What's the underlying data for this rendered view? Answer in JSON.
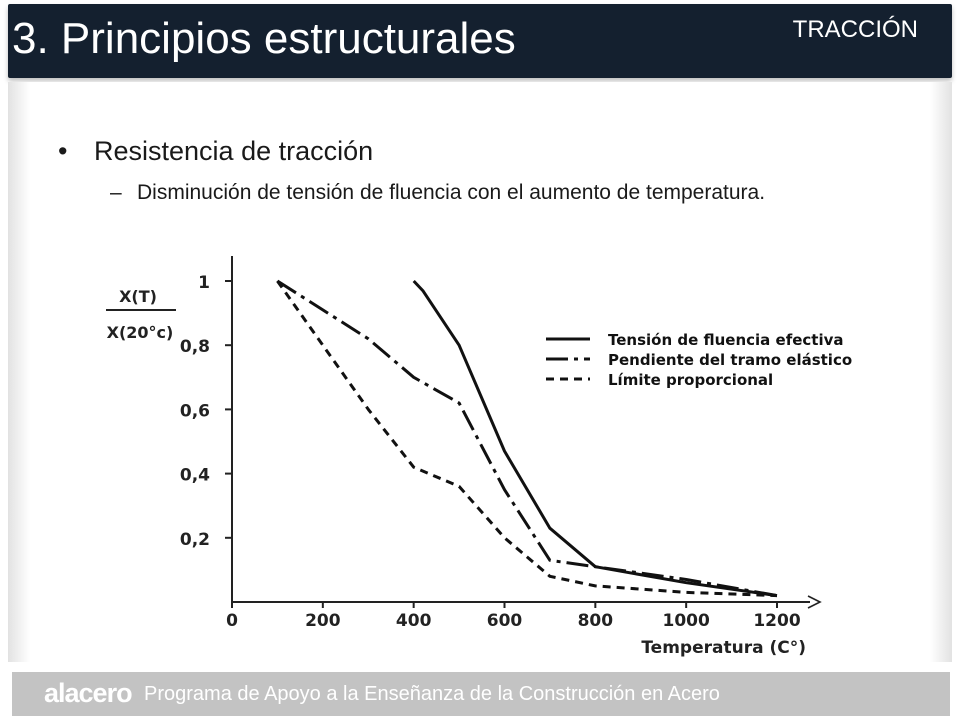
{
  "header": {
    "title": "3. Principios estructurales",
    "section": "TRACCIÓN"
  },
  "content": {
    "bullet": "Resistencia de tracción",
    "bullet_marker": "•",
    "sub_marker": "–",
    "sub_bullet": "Disminución de tensión de fluencia con el aumento de temperatura."
  },
  "chart_data": {
    "type": "line",
    "ylabel_numerator": "X(T)",
    "ylabel_denominator": "X(20°c)",
    "xlabel": "Temperatura (C°)",
    "xlim": [
      0,
      1300
    ],
    "ylim": [
      0,
      1.08
    ],
    "x_ticks": [
      0,
      200,
      400,
      600,
      800,
      1000,
      1200
    ],
    "x_tick_labels": [
      "0",
      "200",
      "400",
      "600",
      "800",
      "1000",
      "1200"
    ],
    "y_ticks": [
      0.2,
      0.4,
      0.6,
      0.8,
      1
    ],
    "y_tick_labels": [
      "0,2",
      "0,4",
      "0,6",
      "0,8",
      "1"
    ],
    "grid": false,
    "legend_position": "top-right",
    "series": [
      {
        "name": "Tensión de fluencia efectiva",
        "dash": "solid",
        "x": [
          400,
          420,
          500,
          600,
          700,
          800,
          1000,
          1200
        ],
        "y": [
          1.0,
          0.97,
          0.8,
          0.47,
          0.23,
          0.11,
          0.06,
          0.02
        ]
      },
      {
        "name": "Pendiente del tramo elástico",
        "dash": "dashdot",
        "x": [
          100,
          200,
          300,
          400,
          500,
          600,
          700,
          800,
          1000,
          1200
        ],
        "y": [
          1.0,
          0.91,
          0.82,
          0.7,
          0.62,
          0.35,
          0.13,
          0.11,
          0.07,
          0.02
        ]
      },
      {
        "name": "Límite proporcional",
        "dash": "dashed",
        "x": [
          100,
          200,
          300,
          400,
          500,
          600,
          700,
          800,
          1000,
          1200
        ],
        "y": [
          1.0,
          0.8,
          0.6,
          0.42,
          0.36,
          0.2,
          0.08,
          0.05,
          0.03,
          0.02
        ]
      }
    ]
  },
  "footer": {
    "logo": "alacero",
    "text": "Programa de Apoyo a la Enseñanza de la Construcción en Acero"
  }
}
